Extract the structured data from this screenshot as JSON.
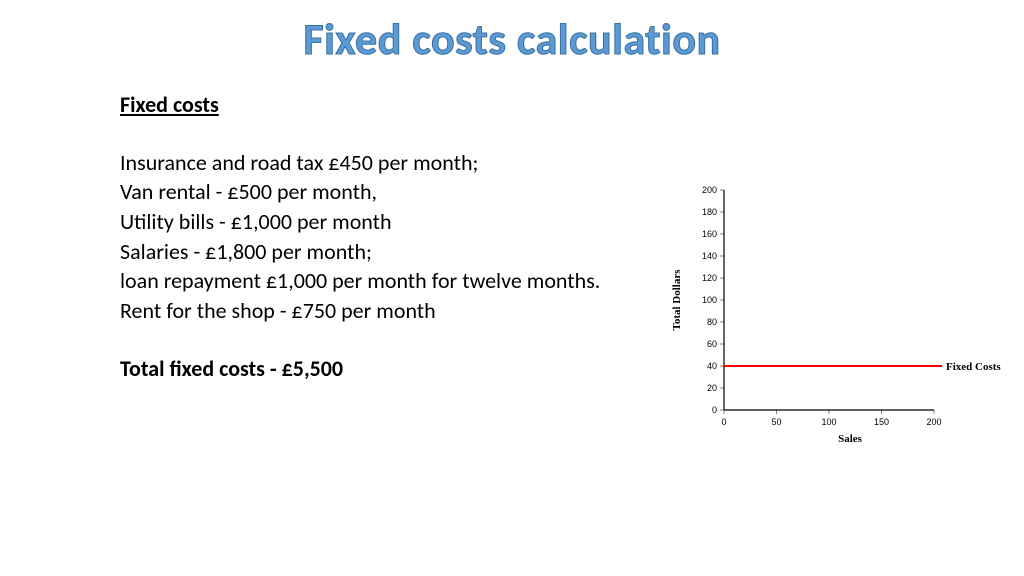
{
  "title": "Fixed costs calculation",
  "subhead": "Fixed costs",
  "items": [
    "Insurance and road tax £450 per month;",
    "Van rental - £500 per month,",
    "Utility bills - £1,000 per month",
    "Salaries - £1,800 per month;",
    "loan repayment £1,000 per month for twelve months.",
    "Rent for the shop - £750 per month"
  ],
  "total": "Total fixed costs -  £5,500",
  "chart": {
    "type": "line",
    "ylabel": "Total Dollars",
    "xlabel": "Sales",
    "series_label": "Fixed Costs",
    "xlim": [
      0,
      200
    ],
    "ylim": [
      0,
      200
    ],
    "xtick_step": 50,
    "ytick_step": 20,
    "line_y_value": 40,
    "line_color": "#ff0000",
    "line_width": 2,
    "axis_color": "#000000",
    "tick_color": "#808080",
    "text_color": "#000000",
    "tick_fontsize": 9,
    "label_fontsize": 11,
    "label_font_family": "Times New Roman, serif",
    "background_color": "#ffffff"
  }
}
